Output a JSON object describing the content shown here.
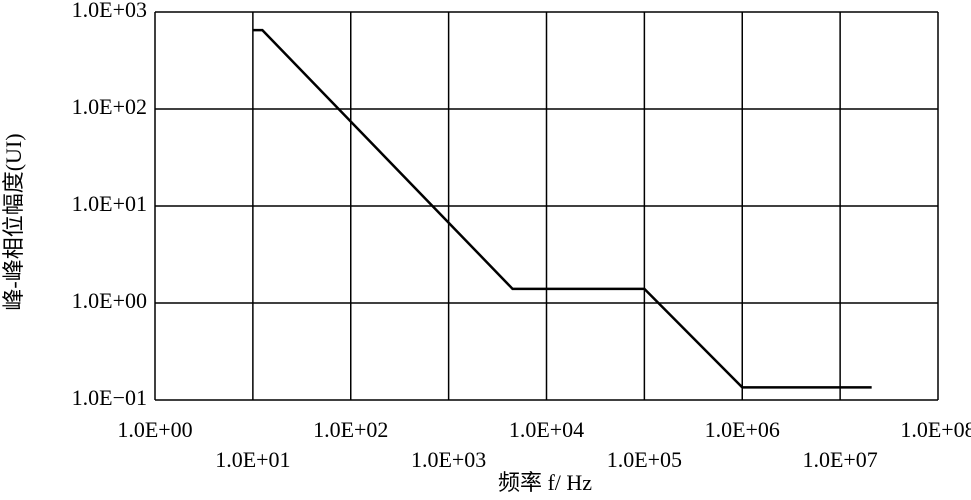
{
  "chart_data": {
    "type": "line",
    "xlabel": "频率 f/ Hz",
    "ylabel": "峰-峰相位幅度(UI)",
    "x": [
      10,
      12.5,
      4500,
      100000,
      1000000,
      21000000
    ],
    "series": [
      {
        "color": "#000000",
        "values": [
          650,
          650,
          1.4,
          1.4,
          0.135,
          0.135
        ]
      }
    ],
    "xscale": "log",
    "yscale": "log",
    "grid": true,
    "xlim": [
      1,
      100000000
    ],
    "ylim": [
      0.1,
      1000
    ],
    "xticks": [
      {
        "value": 1,
        "label": "1.0E+00"
      },
      {
        "value": 10,
        "label": "1.0E+01"
      },
      {
        "value": 100,
        "label": "1.0E+02"
      },
      {
        "value": 1000,
        "label": "1.0E+03"
      },
      {
        "value": 10000,
        "label": "1.0E+04"
      },
      {
        "value": 100000,
        "label": "1.0E+05"
      },
      {
        "value": 1000000,
        "label": "1.0E+06"
      },
      {
        "value": 10000000,
        "label": "1.0E+07"
      },
      {
        "value": 100000000,
        "label": "1.0E+08"
      }
    ],
    "yticks": [
      {
        "value": 0.1,
        "label": "1.0E−01"
      },
      {
        "value": 1,
        "label": "1.0E+00"
      },
      {
        "value": 10,
        "label": "1.0E+01"
      },
      {
        "value": 100,
        "label": "1.0E+02"
      },
      {
        "value": 1000,
        "label": "1.0E+03"
      }
    ]
  }
}
